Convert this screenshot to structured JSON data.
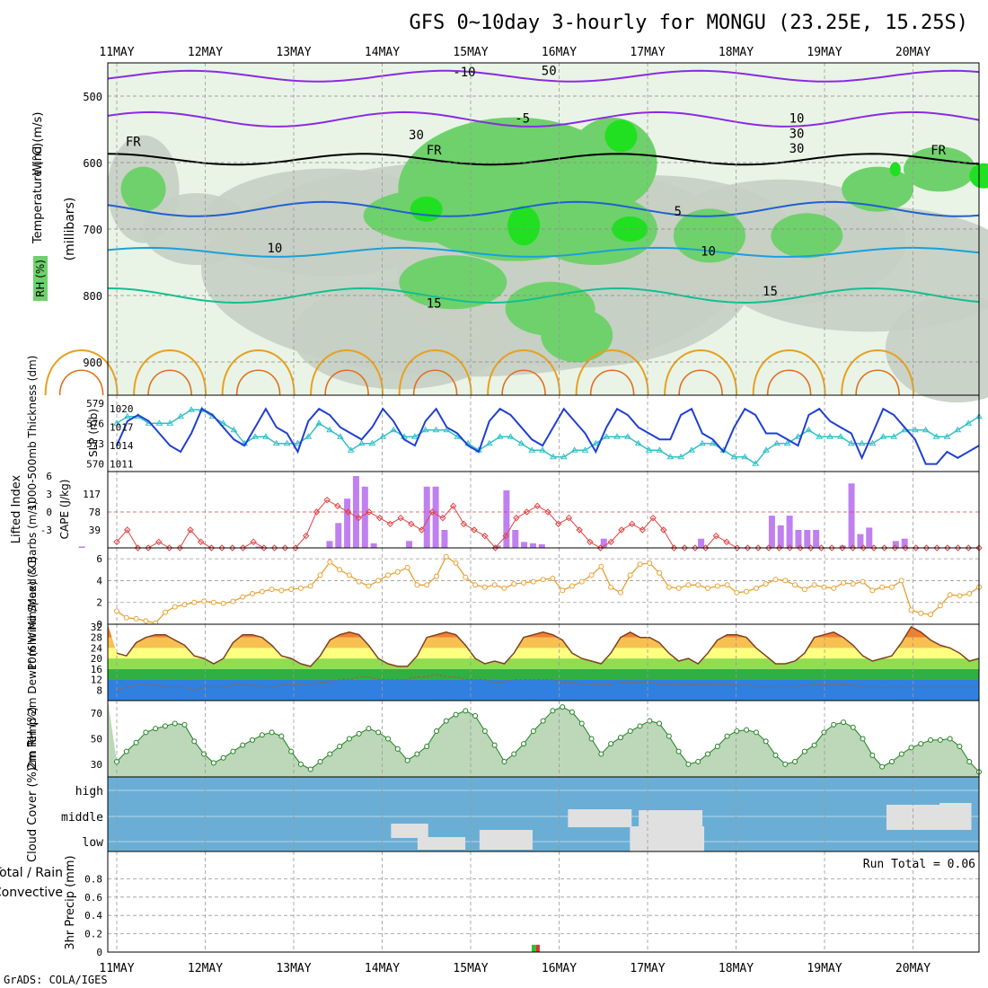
{
  "title": "GFS 0~10day 3-hourly for MONGU (23.25E, 15.25S)",
  "footer": "GrADS: COLA/IGES",
  "dates": [
    "11MAY",
    "12MAY",
    "13MAY",
    "14MAY",
    "15MAY",
    "16MAY",
    "17MAY",
    "18MAY",
    "19MAY",
    "20MAY"
  ],
  "colors": {
    "rh_light": "#e9f4e6",
    "rh_mid": "#c7cfc3",
    "rh_green": "#6fd16b",
    "rh_bright": "#21e021",
    "temp_purple": "#8a2be2",
    "temp_blue": "#2060d0",
    "temp_cyan": "#1aa0dc",
    "temp_teal": "#10c090",
    "temp_orange": "#e8a020",
    "slp_line": "#2040d0",
    "thick_line": "#30c0c8",
    "li_line": "#e04040",
    "cape_bar": "#c080f0",
    "wind_speed": "#e8a030",
    "cloud_bg": "#6aaed6",
    "rh2m_fill": "#60c860"
  },
  "chart_data": [
    {
      "type": "heatmap",
      "name": "vertical",
      "ylabel": "(millibars)",
      "left_label_parts": [
        "Wind (m/s)",
        "Temperature (°C)",
        "RH (%)"
      ],
      "yticks": [
        500,
        600,
        700,
        800,
        900
      ],
      "ylim": [
        450,
        950
      ],
      "contour_labels": [
        {
          "text": "-10",
          "day": 3.8,
          "p": 470
        },
        {
          "text": "-5",
          "day": 4.5,
          "p": 540
        },
        {
          "text": "FR",
          "day": 0.1,
          "p": 575
        },
        {
          "text": "FR",
          "day": 3.5,
          "p": 588
        },
        {
          "text": "FR",
          "day": 9.2,
          "p": 588
        },
        {
          "text": "5",
          "day": 6.3,
          "p": 680
        },
        {
          "text": "10",
          "day": 1.7,
          "p": 735
        },
        {
          "text": "10",
          "day": 6.6,
          "p": 740
        },
        {
          "text": "15",
          "day": 7.3,
          "p": 800
        },
        {
          "text": "15",
          "day": 3.5,
          "p": 818
        },
        {
          "text": "50",
          "day": 4.8,
          "p": 468
        },
        {
          "text": "30",
          "day": 3.3,
          "p": 565
        },
        {
          "text": "30",
          "day": 7.6,
          "p": 585
        },
        {
          "text": "10",
          "day": 7.6,
          "p": 540
        },
        {
          "text": "30",
          "day": 7.6,
          "p": 563
        }
      ]
    },
    {
      "type": "line",
      "name": "slp-thickness",
      "ylabel_left": "1000-500mb Thickness (dm)",
      "ylabel_right": "SLP (mb)",
      "left_ticks": [
        570,
        573,
        576,
        579
      ],
      "right_ticks": [
        1011,
        1014,
        1017,
        1020
      ],
      "ylim_left": [
        569.5,
        579.5
      ],
      "ylim_right": [
        1010.5,
        1021.5
      ],
      "series": [
        {
          "name": "SLP",
          "axis": "right",
          "values": [
            1014,
            1018,
            1019,
            1018,
            1016,
            1014,
            1013,
            1016,
            1020,
            1019,
            1017,
            1015,
            1014,
            1017,
            1020,
            1017,
            1016,
            1013,
            1018,
            1020,
            1019,
            1017,
            1016,
            1015,
            1017,
            1020,
            1018,
            1015,
            1014,
            1018,
            1020,
            1017,
            1016,
            1014,
            1013,
            1018,
            1020,
            1019,
            1017,
            1015,
            1014,
            1017,
            1020,
            1018,
            1016,
            1013,
            1017,
            1020,
            1019,
            1017,
            1016,
            1015,
            1015,
            1019,
            1020,
            1016,
            1015,
            1013,
            1017,
            1020,
            1019,
            1016,
            1016,
            1015,
            1014,
            1019,
            1020,
            1018,
            1017,
            1016,
            1012,
            1016,
            1020,
            1019,
            1017,
            1015,
            1011,
            1011,
            1013,
            1012,
            1013,
            1014
          ]
        },
        {
          "name": "Thickness",
          "axis": "left",
          "values": [
            576,
            577,
            577,
            576,
            576,
            576,
            577,
            578,
            578,
            577,
            576,
            575,
            573,
            574,
            574,
            573,
            573,
            573,
            574,
            576,
            575,
            574,
            572,
            573,
            573,
            574,
            575,
            574,
            574,
            575,
            575,
            575,
            574,
            573,
            572,
            573,
            574,
            574,
            573,
            572,
            572,
            571,
            571,
            572,
            572,
            573,
            574,
            574,
            574,
            573,
            572,
            572,
            571,
            571,
            572,
            573,
            573,
            572,
            571,
            571,
            570,
            572,
            573,
            573,
            574,
            575,
            574,
            574,
            574,
            573,
            573,
            573,
            574,
            574,
            575,
            575,
            575,
            574,
            574,
            575,
            576,
            577
          ]
        }
      ]
    },
    {
      "type": "bar",
      "name": "li-cape",
      "ylabel_left": "Lifted Index",
      "ylabel_right": "CAPE (J/kg)",
      "left_ticks": [
        "-3",
        "0",
        "3",
        "6"
      ],
      "right_ticks": [
        "39",
        "78",
        "117"
      ],
      "cape_max": 156,
      "cape": [
        [
          0.6,
          3
        ],
        [
          2.6,
          3
        ],
        [
          3.4,
          15
        ],
        [
          3.5,
          54
        ],
        [
          3.6,
          107
        ],
        [
          3.7,
          156
        ],
        [
          3.8,
          133
        ],
        [
          3.9,
          10
        ],
        [
          4.3,
          15
        ],
        [
          4.5,
          133
        ],
        [
          4.6,
          133
        ],
        [
          4.7,
          39
        ],
        [
          5.3,
          5
        ],
        [
          5.4,
          125
        ],
        [
          5.5,
          39
        ],
        [
          5.6,
          13
        ],
        [
          5.7,
          10
        ],
        [
          5.8,
          8
        ],
        [
          6.5,
          20
        ],
        [
          7.6,
          20
        ],
        [
          8.4,
          70
        ],
        [
          8.5,
          49
        ],
        [
          8.6,
          70
        ],
        [
          8.7,
          39
        ],
        [
          8.8,
          39
        ],
        [
          8.9,
          39
        ],
        [
          9.2,
          5
        ],
        [
          9.3,
          140
        ],
        [
          9.4,
          30
        ],
        [
          9.5,
          44
        ],
        [
          9.8,
          15
        ],
        [
          9.9,
          20
        ]
      ],
      "li": [
        5,
        3,
        6,
        6,
        5,
        6,
        6,
        3,
        5,
        6,
        6,
        6,
        6,
        5,
        6,
        6,
        6,
        6,
        4,
        0,
        -2,
        -1,
        0,
        1,
        0,
        1,
        2,
        1,
        2,
        3,
        0,
        1,
        -1,
        2,
        3,
        4,
        6,
        4,
        1,
        0,
        -1,
        0,
        2,
        1,
        3,
        5,
        6,
        5,
        3,
        2,
        3,
        1,
        3,
        6,
        6,
        6,
        6,
        4,
        5,
        6,
        6,
        6,
        6,
        6,
        6,
        6,
        6,
        6,
        6,
        6,
        6,
        6,
        6,
        6,
        6,
        6,
        6,
        6,
        6,
        6,
        6,
        6,
        6
      ],
      "li_reference": 0
    },
    {
      "type": "line",
      "name": "wind10m",
      "ylabel": "10m Wind Speed & Barbs (m/s)",
      "yticks": [
        0,
        2,
        4,
        6
      ],
      "ylim": [
        0,
        7
      ],
      "series": [
        {
          "name": "Speed",
          "values": [
            1.2,
            0.6,
            0.5,
            0.3,
            0.1,
            1.1,
            1.6,
            1.8,
            2.0,
            2.1,
            2.0,
            1.9,
            2.1,
            2.5,
            2.8,
            3.0,
            3.2,
            3.1,
            3.2,
            3.3,
            3.5,
            4.5,
            5.7,
            5.0,
            4.5,
            3.9,
            3.5,
            4.0,
            4.5,
            4.8,
            5.2,
            3.6,
            3.6,
            4.4,
            6.2,
            5.6,
            4.3,
            3.6,
            3.4,
            3.6,
            3.3,
            3.7,
            3.8,
            3.9,
            4.1,
            4.2,
            3.1,
            3.5,
            3.9,
            4.5,
            5.3,
            3.4,
            2.9,
            4.5,
            5.5,
            5.6,
            4.7,
            3.4,
            3.3,
            3.6,
            3.6,
            3.3,
            3.5,
            3.6,
            2.9,
            3.0,
            3.3,
            3.7,
            4.1,
            4.0,
            3.6,
            3.2,
            3.6,
            3.4,
            3.3,
            3.8,
            3.7,
            3.9,
            3.1,
            3.4,
            3.4,
            4.0,
            1.3,
            1.0,
            0.9,
            1.7,
            2.7,
            2.6,
            2.8,
            3.4
          ]
        }
      ]
    },
    {
      "type": "area",
      "name": "temp2m",
      "ylabel": "2m Temp 2m DewPt (6hr Min/Max) (°C)",
      "yticks": [
        8,
        12,
        16,
        20,
        24,
        28,
        32
      ],
      "ylim": [
        4,
        33
      ],
      "series": [
        {
          "name": "2m Temp",
          "values": [
            22,
            21,
            26,
            28,
            29,
            29,
            27,
            25,
            21,
            20,
            18,
            20,
            26,
            29,
            29,
            28,
            25,
            21,
            20,
            18,
            17,
            21,
            27,
            29,
            30,
            29,
            25,
            20,
            18,
            17,
            17,
            21,
            28,
            29,
            30,
            29,
            25,
            20,
            18,
            19,
            18,
            22,
            28,
            29,
            30,
            29,
            27,
            22,
            20,
            19,
            18,
            22,
            28,
            30,
            28,
            28,
            26,
            22,
            19,
            20,
            18,
            22,
            27,
            29,
            29,
            28,
            24,
            21,
            18,
            18,
            19,
            22,
            28,
            29,
            30,
            28,
            25,
            21,
            19,
            20,
            21,
            26,
            32,
            30,
            27,
            25,
            24,
            22,
            19,
            20
          ]
        },
        {
          "name": "2m DewPt",
          "values": [
            8,
            9,
            10,
            10,
            10,
            9,
            9,
            9,
            8,
            9,
            9,
            9,
            10,
            10,
            10,
            9,
            9,
            10,
            10,
            10,
            10,
            11,
            11,
            12,
            12,
            13,
            13,
            12,
            12,
            12,
            12,
            13,
            13,
            14,
            13,
            13,
            12,
            12,
            12,
            11,
            11,
            12,
            12,
            12,
            12,
            12,
            11,
            11,
            10,
            10,
            10,
            10,
            11,
            11,
            11,
            11,
            10,
            10,
            10,
            10,
            10,
            10,
            10,
            10,
            10,
            10,
            9,
            9,
            9,
            9,
            9,
            10,
            10,
            10,
            10,
            10,
            10,
            9,
            9,
            9,
            9,
            9,
            9,
            9,
            9,
            9,
            9,
            9,
            9,
            9
          ]
        }
      ]
    },
    {
      "type": "area",
      "name": "rh2m",
      "ylabel": "2m RH (%)",
      "yticks": [
        30,
        50,
        70
      ],
      "ylim": [
        20,
        80
      ],
      "series": [
        {
          "name": "2m RH",
          "values": [
            32,
            40,
            47,
            55,
            58,
            60,
            62,
            61,
            48,
            38,
            31,
            35,
            40,
            45,
            49,
            53,
            55,
            52,
            40,
            30,
            26,
            32,
            38,
            44,
            50,
            54,
            58,
            55,
            50,
            42,
            33,
            38,
            44,
            56,
            64,
            69,
            72,
            68,
            56,
            45,
            32,
            38,
            46,
            56,
            64,
            72,
            75,
            71,
            62,
            50,
            38,
            46,
            51,
            56,
            60,
            64,
            62,
            52,
            40,
            30,
            32,
            38,
            44,
            52,
            56,
            57,
            55,
            48,
            37,
            30,
            32,
            40,
            45,
            55,
            61,
            63,
            59,
            50,
            37,
            28,
            32,
            38,
            43,
            46,
            49,
            49,
            50,
            44,
            32,
            24
          ]
        }
      ]
    },
    {
      "type": "table",
      "name": "cloud",
      "ylabel": "Cloud Cover (%)",
      "levels": [
        "high",
        "middle",
        "low"
      ]
    },
    {
      "type": "bar",
      "name": "precip",
      "ylabel": "3hr Precip (mm)",
      "left_label_parts": [
        "Total / Rain",
        "Convective"
      ],
      "yticks": [
        "0",
        "0.2",
        "0.4",
        "0.6",
        "0.8"
      ],
      "ylim": [
        0,
        1
      ],
      "run_total_label": "Run Total = 0.06",
      "values": [
        [
          5.72,
          0.06
        ]
      ]
    }
  ]
}
